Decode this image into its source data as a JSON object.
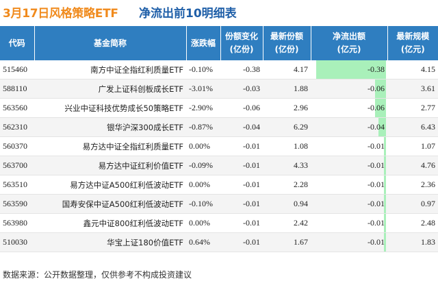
{
  "header": {
    "title_date": "3月17日风格策略ETF",
    "title_sub": "净流出前10明细表"
  },
  "columns": [
    {
      "line1": "代码",
      "line2": ""
    },
    {
      "line1": "基金简称",
      "line2": ""
    },
    {
      "line1": "涨跌幅",
      "line2": ""
    },
    {
      "line1": "份额变化",
      "line2": "(亿份)"
    },
    {
      "line1": "最新份额",
      "line2": "(亿份)"
    },
    {
      "line1": "净流出额",
      "line2": "(亿元)"
    },
    {
      "line1": "最新规模",
      "line2": "(亿元)"
    }
  ],
  "rows": [
    {
      "code": "515460",
      "name": "南方中证全指红利质量ETF",
      "change": "-0.10%",
      "dir": "down",
      "share_change": "-0.38",
      "shares": "4.17",
      "outflow": "-0.38",
      "outflow_value": -0.38,
      "scale": "4.15"
    },
    {
      "code": "588110",
      "name": "广发上证科创板成长ETF",
      "change": "-3.01%",
      "dir": "down",
      "share_change": "-0.03",
      "shares": "1.88",
      "outflow": "-0.06",
      "outflow_value": -0.06,
      "scale": "3.61"
    },
    {
      "code": "563560",
      "name": "兴业中证科技优势成长50策略ETF",
      "change": "-2.90%",
      "dir": "down",
      "share_change": "-0.06",
      "shares": "2.96",
      "outflow": "-0.06",
      "outflow_value": -0.06,
      "scale": "2.77"
    },
    {
      "code": "562310",
      "name": "银华沪深300成长ETF",
      "change": "-0.87%",
      "dir": "down",
      "share_change": "-0.04",
      "shares": "6.29",
      "outflow": "-0.04",
      "outflow_value": -0.04,
      "scale": "6.43"
    },
    {
      "code": "560370",
      "name": "易方达中证全指红利质量ETF",
      "change": "0.00%",
      "dir": "flat",
      "share_change": "-0.01",
      "shares": "1.08",
      "outflow": "-0.01",
      "outflow_value": -0.01,
      "scale": "1.07"
    },
    {
      "code": "563700",
      "name": "易方达中证红利价值ETF",
      "change": "-0.09%",
      "dir": "down",
      "share_change": "-0.01",
      "shares": "4.33",
      "outflow": "-0.01",
      "outflow_value": -0.01,
      "scale": "4.76"
    },
    {
      "code": "563510",
      "name": "易方达中证A500红利低波动ETF",
      "change": "0.00%",
      "dir": "flat",
      "share_change": "-0.01",
      "shares": "2.28",
      "outflow": "-0.01",
      "outflow_value": -0.01,
      "scale": "2.36"
    },
    {
      "code": "563590",
      "name": "国寿安保中证A500红利低波动ETF",
      "change": "-0.10%",
      "dir": "down",
      "share_change": "-0.01",
      "shares": "0.94",
      "outflow": "-0.01",
      "outflow_value": -0.01,
      "scale": "0.97"
    },
    {
      "code": "563980",
      "name": "鑫元中证800红利低波动ETF",
      "change": "0.00%",
      "dir": "flat",
      "share_change": "-0.01",
      "shares": "2.42",
      "outflow": "-0.01",
      "outflow_value": -0.01,
      "scale": "2.48"
    },
    {
      "code": "510030",
      "name": "华宝上证180价值ETF",
      "change": "0.64%",
      "dir": "up",
      "share_change": "-0.01",
      "shares": "1.67",
      "outflow": "-0.01",
      "outflow_value": -0.01,
      "scale": "1.83"
    }
  ],
  "colors": {
    "header_bg": "#2f7ec0",
    "title_orange": "#f08a1c",
    "title_blue": "#1f5fa8",
    "bar_green": "#a9f0ba",
    "up_red": "#e0312a",
    "down_green": "#1e9a3a"
  },
  "footer": {
    "source": "数据来源：公开数据整理，仅供参考不构成投资建议"
  }
}
